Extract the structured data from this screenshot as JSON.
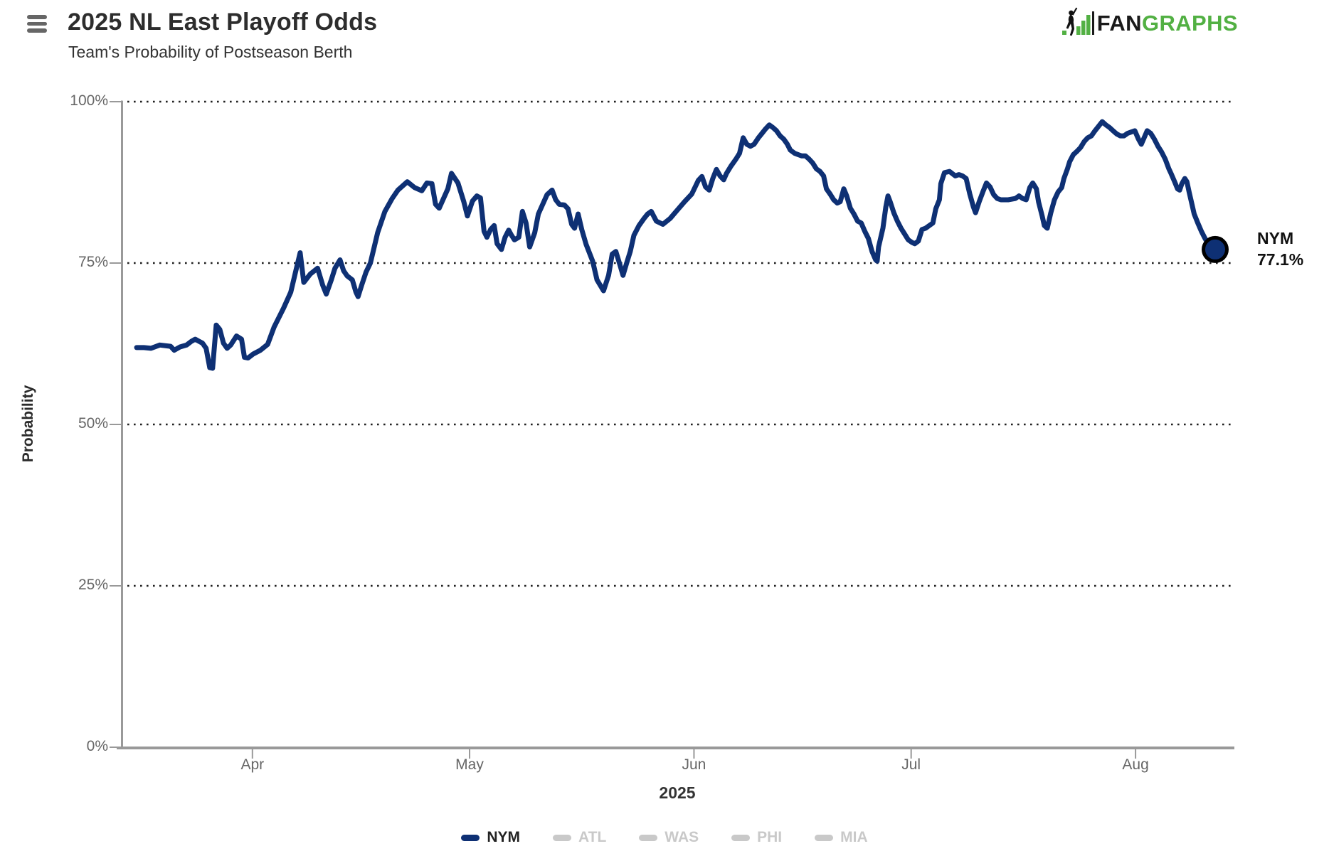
{
  "header": {
    "title": "2025 NL East Playoff Odds",
    "subtitle": "Team's Probability of Postseason Berth"
  },
  "logo": {
    "part1": "FAN",
    "part2": "GRAPHS",
    "green": "#52b043",
    "black": "#1a1a1a"
  },
  "icons": {
    "menu": "hamburger-menu-icon",
    "logo_mark": "fangraphs-batter-icon"
  },
  "colors": {
    "nym_navy": "#0e3074",
    "inactive_gray": "#c9c9c9",
    "axis_gray": "#999999",
    "grid_dot": "#1f1f1f",
    "tick_text": "#666666"
  },
  "chart_data": {
    "type": "line",
    "title": "2025 NL East Playoff Odds",
    "subtitle": "Team's Probability of Postseason Berth",
    "xlabel": "2025",
    "ylabel": "Probability",
    "ylim": [
      0,
      100
    ],
    "grid": "horizontal dotted lines at 0/25/50/75/100",
    "legend_position": "bottom center",
    "yticks": [
      {
        "value": 100,
        "label": "100%"
      },
      {
        "value": 75,
        "label": "75%"
      },
      {
        "value": 50,
        "label": "50%"
      },
      {
        "value": 25,
        "label": "25%"
      },
      {
        "value": 0,
        "label": "0%"
      }
    ],
    "x_unit": "days (day 0 = mid-March 2025)",
    "x_range": [
      0,
      149
    ],
    "xticks": [
      {
        "day": 16,
        "label": "Apr"
      },
      {
        "day": 46,
        "label": "May"
      },
      {
        "day": 77,
        "label": "Jun"
      },
      {
        "day": 107,
        "label": "Jul"
      },
      {
        "day": 138,
        "label": "Aug"
      }
    ],
    "series": [
      {
        "name": "NYM",
        "color": "#0e3074",
        "visible": true,
        "end_label": {
          "team": "NYM",
          "value": "77.1%"
        },
        "points": [
          [
            0,
            61.9
          ],
          [
            1,
            61.9
          ],
          [
            2,
            61.8
          ],
          [
            3.2,
            62.3
          ],
          [
            4.7,
            62.1
          ],
          [
            5.2,
            61.5
          ],
          [
            6,
            62
          ],
          [
            6.9,
            62.3
          ],
          [
            7.6,
            62.9
          ],
          [
            8.1,
            63.2
          ],
          [
            8.6,
            62.9
          ],
          [
            9.1,
            62.6
          ],
          [
            9.6,
            61.8
          ],
          [
            10.1,
            58.8
          ],
          [
            10.5,
            58.7
          ],
          [
            11,
            65.4
          ],
          [
            11.5,
            64.7
          ],
          [
            12,
            62.6
          ],
          [
            12.5,
            61.8
          ],
          [
            13,
            62.3
          ],
          [
            13.8,
            63.7
          ],
          [
            14.5,
            63.2
          ],
          [
            14.9,
            60.4
          ],
          [
            15.4,
            60.3
          ],
          [
            16.1,
            60.9
          ],
          [
            17.1,
            61.5
          ],
          [
            18.1,
            62.4
          ],
          [
            19,
            65.1
          ],
          [
            20.3,
            68
          ],
          [
            21.3,
            70.5
          ],
          [
            22,
            73.8
          ],
          [
            22.6,
            76.6
          ],
          [
            23.1,
            72
          ],
          [
            24,
            73.3
          ],
          [
            25,
            74.2
          ],
          [
            25.7,
            71.6
          ],
          [
            26.2,
            70.2
          ],
          [
            26.9,
            72.4
          ],
          [
            27.4,
            74.2
          ],
          [
            28.1,
            75.5
          ],
          [
            28.6,
            73.8
          ],
          [
            29.1,
            73
          ],
          [
            29.8,
            72.4
          ],
          [
            30.3,
            70.5
          ],
          [
            30.6,
            69.8
          ],
          [
            31.1,
            71.6
          ],
          [
            31.7,
            73.6
          ],
          [
            32.3,
            75
          ],
          [
            33.3,
            79.7
          ],
          [
            34.3,
            83
          ],
          [
            35.3,
            85
          ],
          [
            36.1,
            86.3
          ],
          [
            37.4,
            87.6
          ],
          [
            38.4,
            86.7
          ],
          [
            39.4,
            86.2
          ],
          [
            40.1,
            87.4
          ],
          [
            40.8,
            87.3
          ],
          [
            41.3,
            84.1
          ],
          [
            41.8,
            83.5
          ],
          [
            43,
            86.5
          ],
          [
            43.5,
            88.9
          ],
          [
            44.4,
            87.4
          ],
          [
            45.2,
            84.5
          ],
          [
            45.7,
            82.3
          ],
          [
            46.4,
            84.6
          ],
          [
            47,
            85.4
          ],
          [
            47.5,
            85.1
          ],
          [
            48,
            79.9
          ],
          [
            48.4,
            79
          ],
          [
            48.9,
            80.2
          ],
          [
            49.4,
            80.8
          ],
          [
            49.8,
            78
          ],
          [
            50.4,
            77.1
          ],
          [
            50.9,
            79
          ],
          [
            51.4,
            80.1
          ],
          [
            51.8,
            79.3
          ],
          [
            52.2,
            78.6
          ],
          [
            52.8,
            79
          ],
          [
            53.3,
            83
          ],
          [
            53.8,
            81.2
          ],
          [
            54.3,
            77.5
          ],
          [
            55,
            79.7
          ],
          [
            55.5,
            82.6
          ],
          [
            56.1,
            84.1
          ],
          [
            56.7,
            85.6
          ],
          [
            57.4,
            86.3
          ],
          [
            57.9,
            84.8
          ],
          [
            58.4,
            84.1
          ],
          [
            59.1,
            84
          ],
          [
            59.6,
            83.4
          ],
          [
            60.1,
            81
          ],
          [
            60.5,
            80.4
          ],
          [
            61,
            82.6
          ],
          [
            61.5,
            80.2
          ],
          [
            62.1,
            77.9
          ],
          [
            63,
            75.3
          ],
          [
            63.6,
            72.4
          ],
          [
            64.5,
            70.7
          ],
          [
            65.2,
            73.1
          ],
          [
            65.7,
            76.4
          ],
          [
            66.2,
            76.8
          ],
          [
            66.7,
            75
          ],
          [
            67.2,
            73.1
          ],
          [
            67.7,
            75
          ],
          [
            68.2,
            76.8
          ],
          [
            68.7,
            79.3
          ],
          [
            69.4,
            80.8
          ],
          [
            70.1,
            81.9
          ],
          [
            70.6,
            82.6
          ],
          [
            71.1,
            83
          ],
          [
            71.8,
            81.5
          ],
          [
            72.7,
            81
          ],
          [
            73.7,
            81.9
          ],
          [
            74.7,
            83.2
          ],
          [
            75.7,
            84.5
          ],
          [
            76.7,
            85.7
          ],
          [
            77.6,
            87.8
          ],
          [
            78.1,
            88.4
          ],
          [
            78.6,
            86.8
          ],
          [
            79.1,
            86.3
          ],
          [
            79.6,
            88.1
          ],
          [
            80.1,
            89.5
          ],
          [
            80.6,
            88.5
          ],
          [
            81.1,
            87.9
          ],
          [
            81.5,
            88.9
          ],
          [
            82.1,
            90
          ],
          [
            82.8,
            91.1
          ],
          [
            83.3,
            92
          ],
          [
            83.8,
            94.4
          ],
          [
            84.3,
            93.4
          ],
          [
            84.8,
            93.1
          ],
          [
            85.3,
            93.4
          ],
          [
            85.9,
            94.4
          ],
          [
            86.4,
            95.1
          ],
          [
            86.9,
            95.8
          ],
          [
            87.4,
            96.4
          ],
          [
            87.9,
            96
          ],
          [
            88.4,
            95.5
          ],
          [
            88.9,
            94.7
          ],
          [
            89.4,
            94.2
          ],
          [
            89.9,
            93.4
          ],
          [
            90.3,
            92.5
          ],
          [
            90.9,
            92
          ],
          [
            91.4,
            91.8
          ],
          [
            91.9,
            91.6
          ],
          [
            92.4,
            91.6
          ],
          [
            92.9,
            91.1
          ],
          [
            93.4,
            90.5
          ],
          [
            93.9,
            89.6
          ],
          [
            94.4,
            89.2
          ],
          [
            94.9,
            88.5
          ],
          [
            95.3,
            86.5
          ],
          [
            95.8,
            85.7
          ],
          [
            96.3,
            84.8
          ],
          [
            96.8,
            84.3
          ],
          [
            97.2,
            84.5
          ],
          [
            97.7,
            86.5
          ],
          [
            98.1,
            85.4
          ],
          [
            98.6,
            83.5
          ],
          [
            99.1,
            82.6
          ],
          [
            99.6,
            81.5
          ],
          [
            100.1,
            81.2
          ],
          [
            100.6,
            79.9
          ],
          [
            101.1,
            78.8
          ],
          [
            101.6,
            76.8
          ],
          [
            102.1,
            75.5
          ],
          [
            102.3,
            75.3
          ],
          [
            102.5,
            77.5
          ],
          [
            103.1,
            80.4
          ],
          [
            103.5,
            83.7
          ],
          [
            103.8,
            85.4
          ],
          [
            104.1,
            84.5
          ],
          [
            104.6,
            82.8
          ],
          [
            105.1,
            81.5
          ],
          [
            105.6,
            80.4
          ],
          [
            106.1,
            79.5
          ],
          [
            106.6,
            78.6
          ],
          [
            107.1,
            78.2
          ],
          [
            107.5,
            78
          ],
          [
            108,
            78.4
          ],
          [
            108.5,
            80.2
          ],
          [
            109,
            80.4
          ],
          [
            109.5,
            80.8
          ],
          [
            110,
            81.2
          ],
          [
            110.4,
            83.4
          ],
          [
            110.9,
            84.8
          ],
          [
            111.1,
            87.3
          ],
          [
            111.6,
            89
          ],
          [
            112.3,
            89.2
          ],
          [
            113.1,
            88.5
          ],
          [
            113.6,
            88.7
          ],
          [
            114.1,
            88.5
          ],
          [
            114.6,
            88.1
          ],
          [
            115.1,
            85.7
          ],
          [
            115.6,
            83.7
          ],
          [
            115.9,
            82.8
          ],
          [
            116.4,
            84.5
          ],
          [
            116.9,
            86
          ],
          [
            117.4,
            87.4
          ],
          [
            117.9,
            86.8
          ],
          [
            118.4,
            85.6
          ],
          [
            118.9,
            85
          ],
          [
            119.4,
            84.8
          ],
          [
            120.4,
            84.8
          ],
          [
            121.4,
            85
          ],
          [
            121.9,
            85.4
          ],
          [
            122.4,
            85
          ],
          [
            122.9,
            84.8
          ],
          [
            123.4,
            86.7
          ],
          [
            123.8,
            87.4
          ],
          [
            124.3,
            86.5
          ],
          [
            124.6,
            84.5
          ],
          [
            125.1,
            82.3
          ],
          [
            125.4,
            80.8
          ],
          [
            125.8,
            80.4
          ],
          [
            126.3,
            82.8
          ],
          [
            126.8,
            84.8
          ],
          [
            127.3,
            86
          ],
          [
            127.8,
            86.7
          ],
          [
            128.1,
            88.1
          ],
          [
            128.6,
            89.6
          ],
          [
            128.9,
            90.7
          ],
          [
            129.4,
            91.8
          ],
          [
            129.9,
            92.3
          ],
          [
            130.4,
            92.9
          ],
          [
            130.9,
            93.8
          ],
          [
            131.4,
            94.4
          ],
          [
            131.9,
            94.7
          ],
          [
            132.4,
            95.5
          ],
          [
            132.9,
            96.2
          ],
          [
            133.4,
            96.9
          ],
          [
            133.9,
            96.4
          ],
          [
            134.4,
            96
          ],
          [
            134.9,
            95.5
          ],
          [
            135.4,
            95
          ],
          [
            135.9,
            94.7
          ],
          [
            136.4,
            94.7
          ],
          [
            136.9,
            95.1
          ],
          [
            137.4,
            95.3
          ],
          [
            137.9,
            95.5
          ],
          [
            138.4,
            94.2
          ],
          [
            138.8,
            93.4
          ],
          [
            139.3,
            94.7
          ],
          [
            139.6,
            95.5
          ],
          [
            140.1,
            95.1
          ],
          [
            140.6,
            94.2
          ],
          [
            141.1,
            93.1
          ],
          [
            141.6,
            92.2
          ],
          [
            142.1,
            91.1
          ],
          [
            142.6,
            89.6
          ],
          [
            142.9,
            88.9
          ],
          [
            143.4,
            87.6
          ],
          [
            143.8,
            86.5
          ],
          [
            144.1,
            86.3
          ],
          [
            144.4,
            87.3
          ],
          [
            144.8,
            88.1
          ],
          [
            145.1,
            87.6
          ],
          [
            145.4,
            86
          ],
          [
            145.8,
            84.1
          ],
          [
            146.1,
            82.6
          ],
          [
            146.6,
            81.2
          ],
          [
            147.1,
            79.9
          ],
          [
            147.6,
            78.8
          ],
          [
            148.1,
            77.9
          ],
          [
            148.6,
            77.4
          ],
          [
            149,
            77.1
          ]
        ]
      },
      {
        "name": "ATL",
        "color": "#c9c9c9",
        "visible": false,
        "points": []
      },
      {
        "name": "WAS",
        "color": "#c9c9c9",
        "visible": false,
        "points": []
      },
      {
        "name": "PHI",
        "color": "#c9c9c9",
        "visible": false,
        "points": []
      },
      {
        "name": "MIA",
        "color": "#c9c9c9",
        "visible": false,
        "points": []
      }
    ]
  },
  "legend": {
    "items": [
      {
        "label": "NYM",
        "color": "#0e3074",
        "text_color": "#222222",
        "active": true
      },
      {
        "label": "ATL",
        "color": "#c9c9c9",
        "text_color": "#c9c9c9",
        "active": false
      },
      {
        "label": "WAS",
        "color": "#c9c9c9",
        "text_color": "#c9c9c9",
        "active": false
      },
      {
        "label": "PHI",
        "color": "#c9c9c9",
        "text_color": "#c9c9c9",
        "active": false
      },
      {
        "label": "MIA",
        "color": "#c9c9c9",
        "text_color": "#c9c9c9",
        "active": false
      }
    ]
  }
}
